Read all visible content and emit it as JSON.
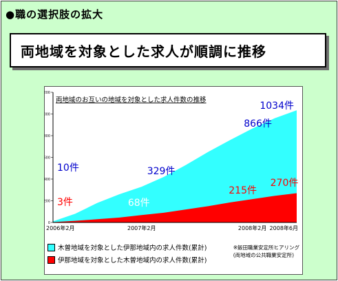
{
  "header": "●職の選択肢の拡大",
  "title": "両地域を対象とした求人が順調に推移",
  "chart_data": {
    "type": "area",
    "title": "両地域のお互いの地域を対象とした求人件数の推移",
    "x_ticks": [
      "2006年2月",
      "2007年2月",
      "2008年2月",
      "2008年6月"
    ],
    "ylim": [
      0,
      1200
    ],
    "y_ticks": [
      0,
      200,
      400,
      600,
      800,
      1000,
      1200
    ],
    "grid": false,
    "series": [
      {
        "name": "木曽地域を対象とした伊那地域内の求人件数(累計)",
        "color": "#33ffff",
        "values": [
          10,
          80,
          180,
          260,
          329,
          420,
          530,
          650,
          760,
          866,
          960,
          1034
        ]
      },
      {
        "name": "伊那地域を対象とした木曽地域内の求人件数(累計)",
        "color": "#ff0000",
        "values": [
          3,
          15,
          30,
          45,
          68,
          90,
          120,
          150,
          185,
          215,
          245,
          270
        ]
      }
    ],
    "annotations": [
      {
        "text": "10件",
        "series": 0,
        "point": 0
      },
      {
        "text": "329件",
        "series": 0,
        "point": 4
      },
      {
        "text": "866件",
        "series": 0,
        "point": 9
      },
      {
        "text": "1034件",
        "series": 0,
        "point": 11
      },
      {
        "text": "3件",
        "series": 1,
        "point": 0
      },
      {
        "text": "68件",
        "series": 1,
        "point": 4
      },
      {
        "text": "215件",
        "series": 1,
        "point": 9
      },
      {
        "text": "270件",
        "series": 1,
        "point": 11
      }
    ],
    "source": "※飯田職業安定所ヒアリング\n(両地域の公共職業安定所)"
  },
  "legend_labels": {
    "s1": "木曽地域を対象とした伊那地域内の求人件数(累計)",
    "s2": "伊那地域を対象とした木曽地域内の求人件数(累計)"
  },
  "colors": {
    "background": "#ccffcc",
    "cyan": "#33ffff",
    "red": "#ff0000",
    "blue_label": "#0000cc"
  }
}
